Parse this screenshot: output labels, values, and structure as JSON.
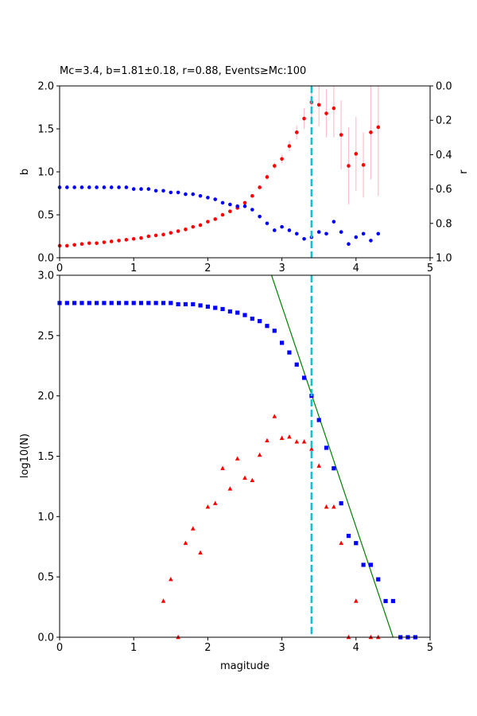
{
  "chart_data": [
    {
      "type": "scatter",
      "title": "Mc=3.4, b=1.81±0.18, r=0.88, Events≥Mc:100",
      "xlabel": "",
      "ylabel": "b",
      "y2label": "r",
      "xlim": [
        0,
        5
      ],
      "ylim": [
        0,
        2.0
      ],
      "y2lim": [
        1.0,
        0.0
      ],
      "y2_inverted": true,
      "xticks": [
        "0",
        "1",
        "2",
        "3",
        "4",
        "5"
      ],
      "yticks": [
        "0.0",
        "0.5",
        "1.0",
        "1.5",
        "2.0"
      ],
      "y2ticks": [
        "0.0",
        "0.2",
        "0.4",
        "0.6",
        "0.8",
        "1.0"
      ],
      "mc_line": 3.4,
      "mc_line_color": "#17becf",
      "b_color": "#ff0000",
      "b_error_color": "#ffc0cb",
      "r_color": "#0000ff",
      "series": [
        {
          "name": "",
          "axis": "left",
          "marker": "circle",
          "x": [
            0.0,
            0.1,
            0.2,
            0.3,
            0.4,
            0.5,
            0.6,
            0.7,
            0.8,
            0.9,
            1.0,
            1.1,
            1.2,
            1.3,
            1.4,
            1.5,
            1.6,
            1.7,
            1.8,
            1.9,
            2.0,
            2.1,
            2.2,
            2.3,
            2.4,
            2.5,
            2.6,
            2.7,
            2.8,
            2.9,
            3.0,
            3.1,
            3.2,
            3.3,
            3.4,
            3.5,
            3.6,
            3.7,
            3.8,
            3.9,
            4.0,
            4.1,
            4.2,
            4.3
          ],
          "y": [
            0.14,
            0.14,
            0.15,
            0.16,
            0.17,
            0.17,
            0.18,
            0.19,
            0.2,
            0.21,
            0.22,
            0.23,
            0.25,
            0.26,
            0.27,
            0.29,
            0.31,
            0.33,
            0.36,
            0.38,
            0.42,
            0.45,
            0.5,
            0.54,
            0.58,
            0.64,
            0.72,
            0.82,
            0.94,
            1.07,
            1.15,
            1.3,
            1.46,
            1.62,
            1.81,
            1.78,
            1.68,
            1.74,
            1.43,
            1.07,
            1.21,
            1.08,
            1.46,
            1.52
          ],
          "yerr": [
            0.01,
            0.01,
            0.01,
            0.01,
            0.01,
            0.01,
            0.01,
            0.01,
            0.01,
            0.01,
            0.01,
            0.01,
            0.01,
            0.01,
            0.01,
            0.01,
            0.01,
            0.01,
            0.01,
            0.01,
            0.01,
            0.01,
            0.01,
            0.01,
            0.01,
            0.02,
            0.02,
            0.02,
            0.03,
            0.04,
            0.05,
            0.06,
            0.08,
            0.12,
            0.18,
            0.25,
            0.28,
            0.34,
            0.4,
            0.45,
            0.43,
            0.38,
            0.55,
            0.8
          ]
        },
        {
          "name": "",
          "axis": "right",
          "marker": "circle",
          "x": [
            0.0,
            0.1,
            0.2,
            0.3,
            0.4,
            0.5,
            0.6,
            0.7,
            0.8,
            0.9,
            1.0,
            1.1,
            1.2,
            1.3,
            1.4,
            1.5,
            1.6,
            1.7,
            1.8,
            1.9,
            2.0,
            2.1,
            2.2,
            2.3,
            2.4,
            2.5,
            2.6,
            2.7,
            2.8,
            2.9,
            3.0,
            3.1,
            3.2,
            3.3,
            3.4,
            3.5,
            3.6,
            3.7,
            3.8,
            3.9,
            4.0,
            4.1,
            4.2,
            4.3
          ],
          "y": [
            0.59,
            0.59,
            0.59,
            0.59,
            0.59,
            0.59,
            0.59,
            0.59,
            0.59,
            0.59,
            0.6,
            0.6,
            0.6,
            0.61,
            0.61,
            0.62,
            0.62,
            0.63,
            0.63,
            0.64,
            0.65,
            0.66,
            0.68,
            0.69,
            0.7,
            0.7,
            0.72,
            0.76,
            0.8,
            0.84,
            0.82,
            0.84,
            0.86,
            0.89,
            0.88,
            0.85,
            0.86,
            0.79,
            0.85,
            0.92,
            0.88,
            0.86,
            0.9,
            0.86
          ]
        }
      ]
    },
    {
      "type": "scatter",
      "title": "",
      "xlabel": "magitude",
      "ylabel": "log10(N)",
      "xlim": [
        0,
        5
      ],
      "ylim": [
        0,
        3.0
      ],
      "xticks": [
        "0",
        "1",
        "2",
        "3",
        "4",
        "5"
      ],
      "yticks": [
        "0.0",
        "0.5",
        "1.0",
        "1.5",
        "2.0",
        "2.5",
        "3.0"
      ],
      "mc_line": 3.4,
      "mc_line_color": "#17becf",
      "fit_color": "#008000",
      "cum_color": "#0000ff",
      "noncum_color": "#ff0000",
      "fit_line": {
        "x": [
          2.86,
          4.5
        ],
        "y": [
          3.0,
          0.0
        ]
      },
      "series": [
        {
          "name": "",
          "marker": "square",
          "x": [
            0.0,
            0.1,
            0.2,
            0.3,
            0.4,
            0.5,
            0.6,
            0.7,
            0.8,
            0.9,
            1.0,
            1.1,
            1.2,
            1.3,
            1.4,
            1.5,
            1.6,
            1.7,
            1.8,
            1.9,
            2.0,
            2.1,
            2.2,
            2.3,
            2.4,
            2.5,
            2.6,
            2.7,
            2.8,
            2.9,
            3.0,
            3.1,
            3.2,
            3.3,
            3.4,
            3.5,
            3.6,
            3.7,
            3.8,
            3.9,
            4.0,
            4.1,
            4.2,
            4.3,
            4.4,
            4.5,
            4.6,
            4.7,
            4.8
          ],
          "y": [
            2.77,
            2.77,
            2.77,
            2.77,
            2.77,
            2.77,
            2.77,
            2.77,
            2.77,
            2.77,
            2.77,
            2.77,
            2.77,
            2.77,
            2.77,
            2.77,
            2.76,
            2.76,
            2.76,
            2.75,
            2.74,
            2.73,
            2.72,
            2.7,
            2.69,
            2.67,
            2.64,
            2.62,
            2.58,
            2.54,
            2.44,
            2.36,
            2.26,
            2.15,
            2.0,
            1.8,
            1.57,
            1.4,
            1.11,
            0.84,
            0.78,
            0.6,
            0.6,
            0.48,
            0.3,
            0.3,
            0.0,
            0.0,
            0.0
          ]
        },
        {
          "name": "",
          "marker": "triangle",
          "x": [
            1.4,
            1.5,
            1.6,
            1.7,
            1.8,
            1.9,
            2.0,
            2.1,
            2.2,
            2.3,
            2.4,
            2.5,
            2.6,
            2.7,
            2.8,
            2.9,
            3.0,
            3.1,
            3.2,
            3.3,
            3.4,
            3.5,
            3.6,
            3.7,
            3.8,
            3.9,
            4.0,
            4.2,
            4.3
          ],
          "y": [
            0.3,
            0.48,
            0.0,
            0.78,
            0.9,
            0.7,
            1.08,
            1.11,
            1.4,
            1.23,
            1.48,
            1.32,
            1.3,
            1.51,
            1.63,
            1.83,
            1.65,
            1.66,
            1.62,
            1.62,
            1.56,
            1.42,
            1.08,
            1.08,
            0.78,
            0.0,
            0.3,
            0.0,
            0.0
          ]
        }
      ]
    }
  ]
}
